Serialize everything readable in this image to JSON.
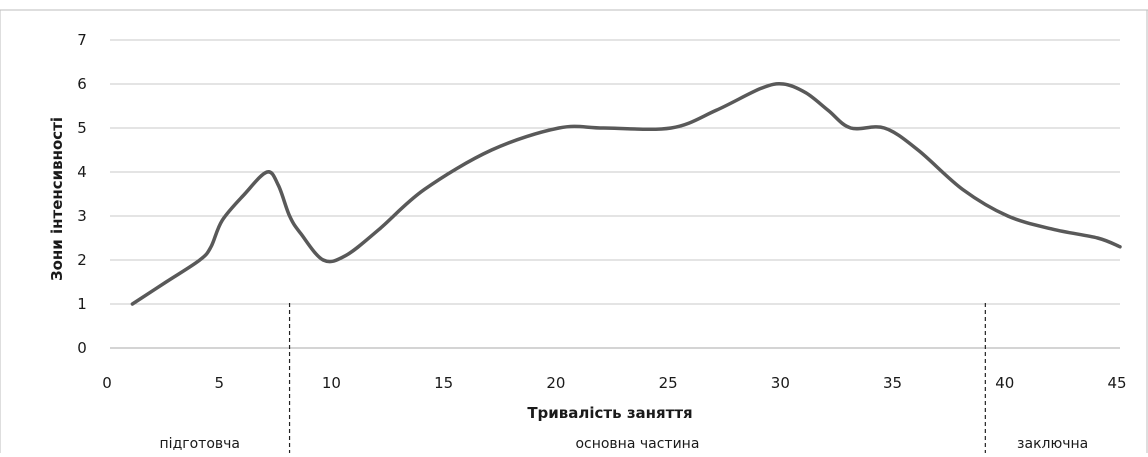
{
  "chart_data": {
    "type": "line",
    "title": "",
    "xlabel": "Тривалість заняття",
    "ylabel": "Зони інтенсивності",
    "xlim": [
      0,
      45
    ],
    "ylim": [
      0,
      7
    ],
    "x_ticks": [
      0,
      5,
      10,
      15,
      20,
      25,
      30,
      35,
      40,
      45
    ],
    "y_ticks": [
      0,
      1,
      2,
      3,
      4,
      5,
      6,
      7
    ],
    "grid": "horizontal",
    "legend": "none",
    "line_color": "#595959",
    "series": [
      {
        "x": [
          1,
          2.5,
          4,
          4.5,
          5,
          6,
          7,
          7.5,
          8,
          8.5,
          9.5,
          10.5,
          12,
          14,
          17,
          20,
          22,
          25,
          27,
          29,
          30,
          31,
          32,
          33,
          34.5,
          36,
          38,
          40,
          42,
          44,
          45
        ],
        "values": [
          1,
          1.5,
          2,
          2.3,
          2.9,
          3.5,
          4,
          3.7,
          3,
          2.6,
          2,
          2.1,
          2.7,
          3.6,
          4.5,
          5,
          5,
          5,
          5.4,
          5.9,
          6,
          5.8,
          5.4,
          5,
          5,
          4.5,
          3.6,
          3,
          2.7,
          2.5,
          2.3
        ]
      }
    ],
    "phase_dividers": [
      8,
      39
    ],
    "phase_labels": [
      {
        "label": "підготовча",
        "x": 4
      },
      {
        "label": "основна частина",
        "x": 23.5
      },
      {
        "label": "заключна",
        "x": 42
      }
    ]
  }
}
